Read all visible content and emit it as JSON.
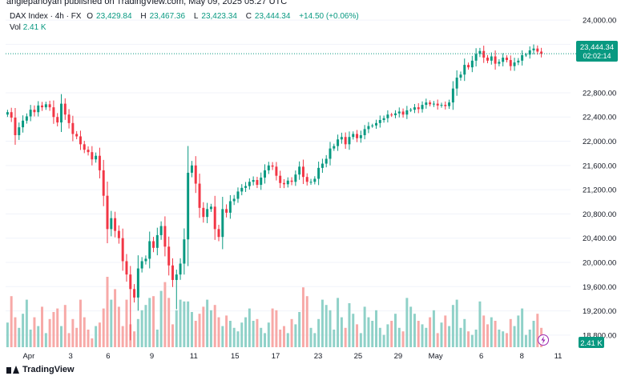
{
  "header": {
    "published": "anglepanoyan published on TradingView.com, May 09, 2025 05:27 UTC"
  },
  "legend": {
    "symbol": "DAX Index · 4h · FX",
    "o_label": "O",
    "o_value": "23,429.84",
    "h_label": "H",
    "h_value": "23,467.36",
    "l_label": "L",
    "l_value": "23,423.34",
    "c_label": "C",
    "c_value": "23,444.34",
    "change": "+14.50 (+0.06%)",
    "vol_label": "Vol",
    "vol_value": "2.41 K"
  },
  "price_badge": {
    "price": "23,444.34",
    "countdown": "02:02:14"
  },
  "volume_badge": {
    "value": "2.41 K"
  },
  "brand": {
    "name": "TradingView"
  },
  "colors": {
    "up": "#089981",
    "down": "#f23645",
    "vol_up": "#8fd1c8",
    "vol_down": "#f7a9a7"
  },
  "chart_data": {
    "type": "candlestick",
    "interval": "4h",
    "y_ticks": [
      "24,000.00",
      "23,600.00",
      "22,800.00",
      "22,400.00",
      "22,000.00",
      "21,600.00",
      "21,200.00",
      "20,800.00",
      "20,400.00",
      "20,000.00",
      "19,600.00",
      "19,200.00",
      "18,800.00"
    ],
    "y_tick_values": [
      24000,
      23600,
      22800,
      22400,
      22000,
      21600,
      21200,
      20800,
      20400,
      20000,
      19600,
      19200,
      18800
    ],
    "ylim": [
      18600,
      24120
    ],
    "x_ticks": [
      "Apr",
      "3",
      "6",
      "9",
      "11",
      "15",
      "17",
      "23",
      "25",
      "29",
      "May",
      "6",
      "8",
      "11"
    ],
    "last_price": 23444.34,
    "closes": [
      22480,
      22390,
      22100,
      22230,
      22340,
      22410,
      22520,
      22480,
      22590,
      22560,
      22610,
      22560,
      22400,
      22310,
      22620,
      22440,
      22300,
      22120,
      22080,
      21950,
      21860,
      21820,
      21700,
      21760,
      21520,
      21100,
      20550,
      20730,
      20520,
      20400,
      20020,
      19800,
      19560,
      19420,
      19900,
      20020,
      20060,
      20350,
      20240,
      20450,
      20600,
      20260,
      19950,
      19710,
      19800,
      19980,
      20380,
      21480,
      21600,
      21300,
      20900,
      20750,
      20880,
      20920,
      20550,
      20420,
      20880,
      20820,
      21010,
      21050,
      21170,
      21230,
      21260,
      21330,
      21360,
      21280,
      21400,
      21520,
      21600,
      21580,
      21430,
      21310,
      21290,
      21350,
      21330,
      21450,
      21580,
      21410,
      21330,
      21330,
      21380,
      21560,
      21630,
      21710,
      21880,
      21920,
      22030,
      22070,
      21950,
      22070,
      22120,
      22050,
      22100,
      22200,
      22250,
      22260,
      22300,
      22350,
      22380,
      22440,
      22430,
      22460,
      22490,
      22440,
      22510,
      22520,
      22560,
      22530,
      22600,
      22640,
      22610,
      22620,
      22590,
      22600,
      22580,
      22640,
      22870,
      23050,
      23100,
      23260,
      23220,
      23330,
      23440,
      23490,
      23380,
      23330,
      23400,
      23280,
      23310,
      23380,
      23340,
      23240,
      23300,
      23330,
      23420,
      23430,
      23500,
      23530,
      23480,
      23444.34
    ],
    "volumes": [
      0.7,
      1.45,
      0.85,
      0.55,
      0.95,
      1.35,
      0.5,
      0.85,
      0.6,
      1.15,
      0.4,
      0.8,
      1.0,
      1.1,
      0.6,
      1.2,
      0.4,
      0.8,
      0.55,
      1.35,
      0.85,
      0.5,
      0.25,
      0.6,
      0.7,
      1.1,
      2.0,
      1.35,
      1.65,
      1.15,
      0.6,
      1.35,
      0.65,
      0.45,
      0.8,
      1.05,
      1.2,
      1.4,
      1.45,
      0.5,
      1.6,
      1.85,
      1.4,
      0.65,
      1.05,
      1.35,
      1.3,
      1.3,
      1.0,
      0.75,
      0.95,
      1.15,
      1.35,
      1.05,
      1.2,
      0.85,
      0.6,
      0.9,
      0.75,
      0.55,
      0.45,
      0.7,
      0.85,
      1.1,
      0.75,
      0.8,
      0.55,
      0.4,
      0.7,
      1.1,
      1.05,
      0.5,
      0.6,
      0.4,
      0.8,
      0.65,
      1.0,
      1.7,
      1.45,
      0.55,
      0.4,
      0.8,
      1.35,
      1.2,
      1.05,
      0.5,
      1.4,
      0.85,
      0.55,
      1.25,
      0.95,
      0.65,
      0.4,
      1.15,
      0.85,
      0.75,
      1.05,
      0.55,
      0.35,
      0.65,
      0.75,
      0.95,
      0.55,
      0.45,
      1.4,
      1.15,
      0.95,
      0.75,
      0.65,
      0.55,
      0.85,
      1.05,
      0.4,
      0.7,
      0.9,
      0.6,
      1.2,
      1.35,
      0.55,
      0.8,
      0.45,
      0.35,
      0.5,
      1.3,
      0.9,
      0.65,
      0.85,
      0.75,
      0.5,
      0.45,
      0.4,
      0.8,
      0.6,
      0.9,
      1.1,
      0.35,
      0.5,
      0.75,
      0.95,
      0.55
    ]
  }
}
